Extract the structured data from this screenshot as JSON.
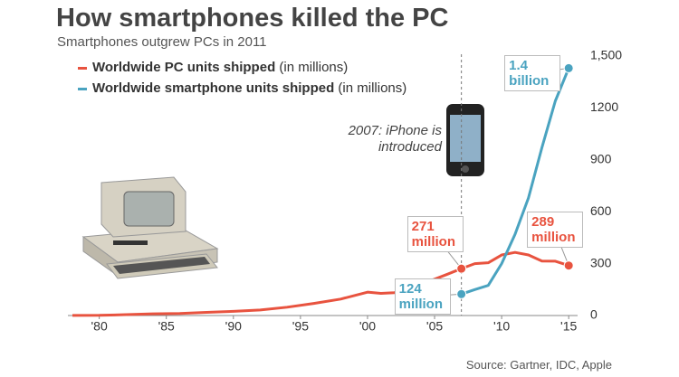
{
  "chart_data": {
    "type": "line",
    "title": "How smartphones killed the PC",
    "subtitle": "Smartphones outgrew PCs in 2011",
    "unit": "(in millions)",
    "source": "Source: Gartner, IDC, Apple",
    "annotation": {
      "text": "2007: iPhone is introduced",
      "x": 2007
    },
    "xlim": [
      1978,
      2016
    ],
    "xticks": [
      {
        "value": 1980,
        "label": "'80"
      },
      {
        "value": 1985,
        "label": "'85"
      },
      {
        "value": 1990,
        "label": "'90"
      },
      {
        "value": 1995,
        "label": "'95"
      },
      {
        "value": 2000,
        "label": "'00"
      },
      {
        "value": 2005,
        "label": "'05"
      },
      {
        "value": 2010,
        "label": "'10"
      },
      {
        "value": 2015,
        "label": "'15"
      }
    ],
    "ylim": [
      0,
      1500
    ],
    "yticks": [
      0,
      300,
      600,
      900,
      1200,
      {
        "value": 1500,
        "label": "1,500"
      }
    ],
    "grid": false,
    "series": [
      {
        "name": "Worldwide PC units shipped",
        "color": "#e8533f",
        "x": [
          1978,
          1980,
          1982,
          1984,
          1986,
          1988,
          1990,
          1992,
          1994,
          1996,
          1998,
          2000,
          2001,
          2002,
          2003,
          2004,
          2005,
          2006,
          2007,
          2008,
          2009,
          2010,
          2011,
          2012,
          2013,
          2014,
          2015
        ],
        "values": [
          0.5,
          1,
          5,
          10,
          12,
          18,
          24,
          32,
          48,
          70,
          95,
          135,
          128,
          132,
          150,
          180,
          210,
          240,
          271,
          300,
          305,
          350,
          365,
          350,
          315,
          314,
          289
        ],
        "value_labels": [
          null,
          null,
          null,
          null,
          null,
          null,
          null,
          null,
          null,
          null,
          null,
          null,
          null,
          null,
          null,
          null,
          null,
          null,
          "271 million",
          null,
          null,
          null,
          null,
          null,
          null,
          null,
          "289 million"
        ]
      },
      {
        "name": "Worldwide smartphone units shipped",
        "color": "#4aa3c0",
        "x": [
          2007,
          2008,
          2009,
          2010,
          2011,
          2012,
          2013,
          2014,
          2015
        ],
        "values": [
          124,
          150,
          174,
          300,
          470,
          680,
          970,
          1240,
          1430
        ],
        "value_labels": [
          "124 million",
          null,
          null,
          null,
          null,
          null,
          null,
          null,
          "1.4 billion"
        ]
      }
    ]
  }
}
